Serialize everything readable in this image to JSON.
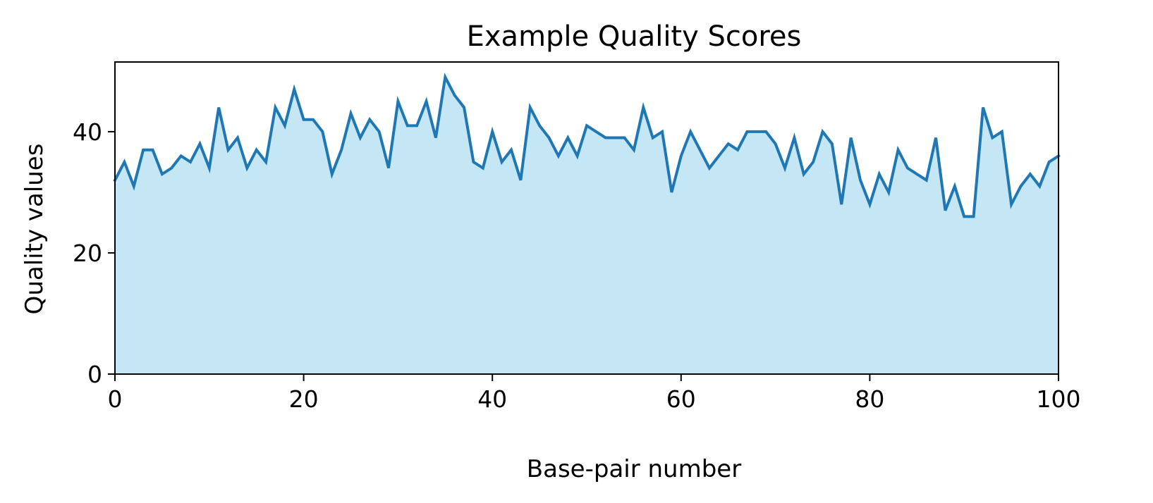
{
  "chart_data": {
    "type": "area",
    "title": "Example Quality Scores",
    "xlabel": "Base-pair number",
    "ylabel": "Quality values",
    "xlim": [
      0,
      100
    ],
    "ylim": [
      0,
      51.5
    ],
    "xticks": [
      0,
      20,
      40,
      60,
      80,
      100
    ],
    "yticks": [
      0,
      20,
      40
    ],
    "grid": false,
    "line_color": "#1f77b4",
    "fill_color": "#c4e6f5",
    "series": [
      {
        "x": [
          0,
          1,
          2,
          3,
          4,
          5,
          6,
          7,
          8,
          9,
          10,
          11,
          12,
          13,
          14,
          15,
          16,
          17,
          18,
          19,
          20,
          21,
          22,
          23,
          24,
          25,
          26,
          27,
          28,
          29,
          30,
          31,
          32,
          33,
          34,
          35,
          36,
          37,
          38,
          39,
          40,
          41,
          42,
          43,
          44,
          45,
          46,
          47,
          48,
          49,
          50,
          51,
          52,
          53,
          54,
          55,
          56,
          57,
          58,
          59,
          60,
          61,
          62,
          63,
          64,
          65,
          66,
          67,
          68,
          69,
          70,
          71,
          72,
          73,
          74,
          75,
          76,
          77,
          78,
          79,
          80,
          81,
          82,
          83,
          84,
          85,
          86,
          87,
          88,
          89,
          90,
          91,
          92,
          93,
          94,
          95,
          96,
          97,
          98,
          99,
          100
        ],
        "y": [
          32,
          35,
          31,
          37,
          37,
          33,
          34,
          36,
          35,
          38,
          34,
          44,
          37,
          39,
          34,
          37,
          35,
          44,
          41,
          47,
          42,
          42,
          40,
          33,
          37,
          43,
          39,
          42,
          40,
          34,
          45,
          41,
          41,
          45,
          39,
          49,
          46,
          44,
          35,
          34,
          40,
          35,
          37,
          32,
          44,
          41,
          39,
          36,
          39,
          36,
          41,
          40,
          39,
          39,
          39,
          37,
          44,
          39,
          40,
          30,
          36,
          40,
          37,
          34,
          36,
          38,
          37,
          40,
          40,
          40,
          38,
          34,
          39,
          33,
          35,
          40,
          38,
          28,
          39,
          32,
          28,
          33,
          30,
          37,
          34,
          33,
          32,
          39,
          27,
          31,
          26,
          26,
          44,
          39,
          40,
          28,
          31,
          33,
          31,
          35,
          36
        ]
      }
    ]
  }
}
